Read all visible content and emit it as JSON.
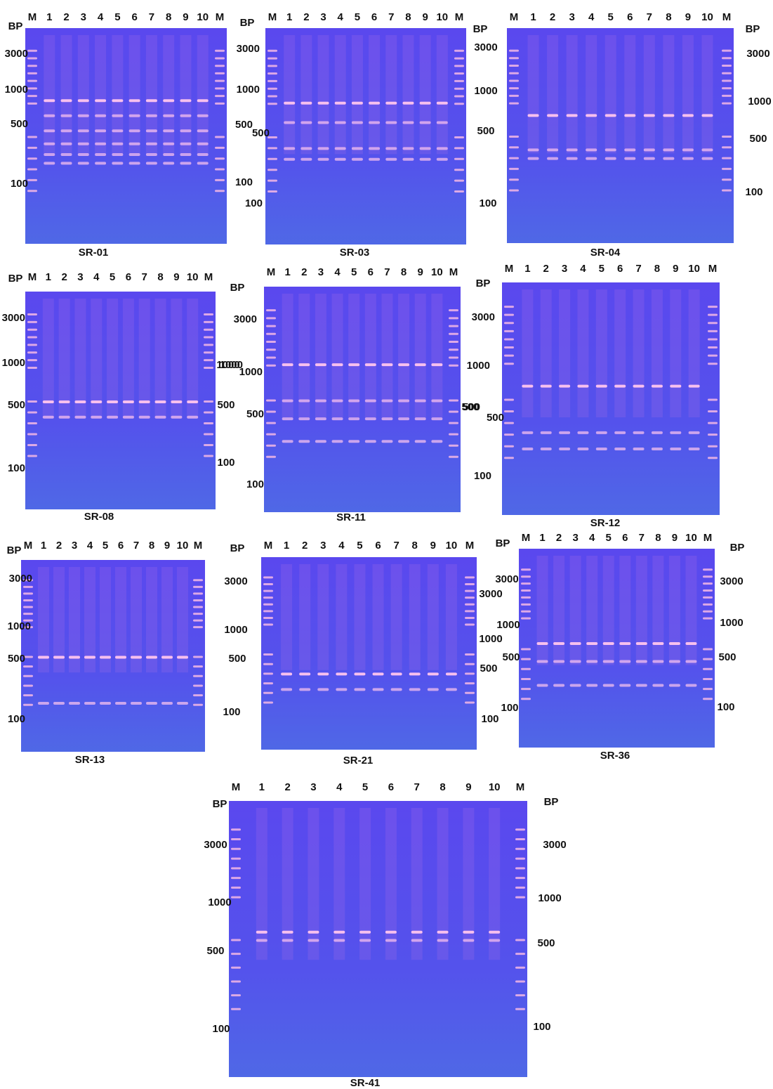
{
  "panels": [
    {
      "caption": "SR-01",
      "lanes": [
        "M",
        "1",
        "2",
        "3",
        "4",
        "5",
        "6",
        "7",
        "8",
        "9",
        "10",
        "M"
      ],
      "bp_labels": [
        "BP"
      ],
      "left_markers": [
        "3000",
        "1000",
        "500",
        "100"
      ],
      "right_markers": []
    },
    {
      "caption": "SR-03",
      "lanes": [
        "M",
        "1",
        "2",
        "3",
        "4",
        "5",
        "6",
        "7",
        "8",
        "9",
        "10",
        "M"
      ],
      "bp_labels": [
        "BP"
      ],
      "left_markers": [
        "3000",
        "1000",
        "500",
        "500",
        "100",
        "100"
      ],
      "right_markers": []
    },
    {
      "caption": "SR-04",
      "lanes": [
        "M",
        "1",
        "2",
        "3",
        "4",
        "5",
        "6",
        "7",
        "8",
        "9",
        "10",
        "M"
      ],
      "bp_labels": [
        "BP",
        "BP"
      ],
      "left_markers": [
        "3000",
        "1000",
        "500",
        "100"
      ],
      "right_markers": [
        "3000",
        "1000",
        "500",
        "100"
      ]
    },
    {
      "caption": "SR-08",
      "lanes": [
        "M",
        "1",
        "2",
        "3",
        "4",
        "5",
        "6",
        "7",
        "8",
        "9",
        "10",
        "M"
      ],
      "bp_labels": [
        "BP"
      ],
      "left_markers": [
        "3000",
        "1000",
        "500",
        "100"
      ],
      "right_markers": [
        "1000",
        "500",
        "100"
      ]
    },
    {
      "caption": "SR-11",
      "lanes": [
        "M",
        "1",
        "2",
        "3",
        "4",
        "5",
        "6",
        "7",
        "8",
        "9",
        "10",
        "M"
      ],
      "bp_labels": [
        "BP"
      ],
      "left_markers": [
        "3000",
        "1000",
        "1000",
        "500",
        "100"
      ],
      "right_markers": [
        "500"
      ]
    },
    {
      "caption": "SR-12",
      "lanes": [
        "M",
        "1",
        "2",
        "3",
        "4",
        "5",
        "6",
        "7",
        "8",
        "9",
        "10",
        "M"
      ],
      "bp_labels": [
        "BP"
      ],
      "left_markers": [
        "3000",
        "1000",
        "500",
        "500",
        "100"
      ],
      "right_markers": []
    },
    {
      "caption": "SR-13",
      "lanes": [
        "M",
        "1",
        "2",
        "3",
        "4",
        "5",
        "6",
        "7",
        "8",
        "9",
        "10",
        "M"
      ],
      "bp_labels": [
        "BP"
      ],
      "left_markers": [
        "3000",
        "1000",
        "500",
        "100"
      ],
      "right_markers": []
    },
    {
      "caption": "SR-21",
      "lanes": [
        "M",
        "1",
        "2",
        "3",
        "4",
        "5",
        "6",
        "7",
        "8",
        "9",
        "10",
        "M"
      ],
      "bp_labels": [
        "BP"
      ],
      "left_markers": [
        "3000",
        "1000",
        "500",
        "100"
      ],
      "right_markers": [
        "3000",
        "1000",
        "500",
        "100"
      ]
    },
    {
      "caption": "SR-36",
      "lanes": [
        "M",
        "1",
        "2",
        "3",
        "4",
        "5",
        "6",
        "7",
        "8",
        "9",
        "10",
        "M"
      ],
      "bp_labels": [
        "BP",
        "BP"
      ],
      "left_markers": [
        "3000",
        "1000",
        "500",
        "100"
      ],
      "right_markers": [
        "3000",
        "1000",
        "500",
        "100"
      ]
    },
    {
      "caption": "SR-41",
      "lanes": [
        "M",
        "1",
        "2",
        "3",
        "4",
        "5",
        "6",
        "7",
        "8",
        "9",
        "10",
        "M"
      ],
      "bp_labels": [
        "BP",
        "BP"
      ],
      "left_markers": [
        "3000",
        "1000",
        "500",
        "100"
      ],
      "right_markers": [
        "3000",
        "1000",
        "500",
        "100"
      ]
    }
  ]
}
